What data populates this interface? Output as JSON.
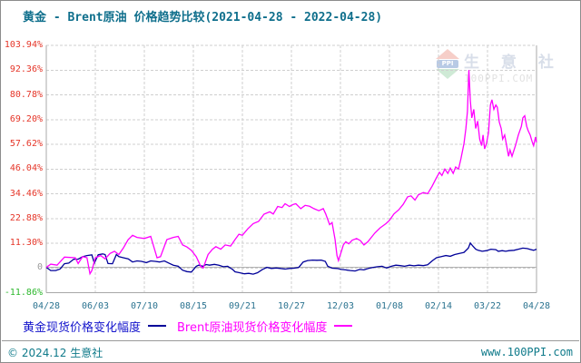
{
  "header": {
    "title": "黄金 - Brent原油 价格趋势比较(2021-04-28 - 2022-04-28)"
  },
  "watermark": {
    "logo_text": "PPI",
    "site_name": "生 意 社",
    "site_domain": "100PPI.COM"
  },
  "legend": {
    "series": [
      {
        "label": "黄金现货价格变化幅度",
        "line_color": "#000099",
        "text_color": "#1414cc"
      },
      {
        "label": "Brent原油现货价格变化幅度",
        "line_color": "#ff00ff",
        "text_color": "#ff00ff"
      }
    ]
  },
  "footer": {
    "left": "© 2024.12 生意社",
    "right": "www.100PPI.com"
  },
  "colors": {
    "title": "#0f6f8c",
    "x_tick": "#2b7390",
    "y_tick_positive": "#e53528",
    "y_tick_zero": "#999999",
    "y_tick_negative": "#2eb82e",
    "grid": "#cfcfcf",
    "axis_border": "#a8a8a8",
    "zero_line": "#b2b2b2",
    "series_gold": "#000099",
    "series_brent": "#ff00ff"
  },
  "chart_data": {
    "type": "line",
    "title": "黄金 - Brent原油 价格趋势比较(2021-04-28 - 2022-04-28)",
    "xlabel": "",
    "ylabel": "",
    "ylim": [
      -11.86,
      103.94
    ],
    "grid": "dashed",
    "legend_position": "bottom",
    "x_ticks": [
      "04/28",
      "06/03",
      "07/10",
      "08/15",
      "09/21",
      "10/27",
      "12/03",
      "01/08",
      "02/14",
      "03/22",
      "04/28"
    ],
    "y_ticks": [
      {
        "label": "103.94%",
        "value": 103.94
      },
      {
        "label": "92.36%",
        "value": 92.36
      },
      {
        "label": "80.78%",
        "value": 80.78
      },
      {
        "label": "69.20%",
        "value": 69.2
      },
      {
        "label": "57.62%",
        "value": 57.62
      },
      {
        "label": "46.04%",
        "value": 46.04
      },
      {
        "label": "34.46%",
        "value": 34.46
      },
      {
        "label": "22.88%",
        "value": 22.88
      },
      {
        "label": "11.30%",
        "value": 11.3
      },
      {
        "label": "0",
        "value": 0
      },
      {
        "label": "-11.86%",
        "value": -11.86
      }
    ],
    "gridline_values": [
      103.94,
      92.36,
      80.78,
      69.2,
      57.62,
      46.04,
      34.46,
      22.88,
      11.3,
      -0.28
    ],
    "zero_line_value": 0,
    "series": [
      {
        "name": "黄金现货价格变化幅度",
        "color": "#000099",
        "points": [
          [
            0.0,
            0
          ],
          [
            0.009,
            -1.5
          ],
          [
            0.019,
            -1.5
          ],
          [
            0.028,
            -0.8
          ],
          [
            0.037,
            1.7
          ],
          [
            0.046,
            2.0
          ],
          [
            0.056,
            3.8
          ],
          [
            0.065,
            3.8
          ],
          [
            0.074,
            5.0
          ],
          [
            0.083,
            5.5
          ],
          [
            0.093,
            5.8
          ],
          [
            0.098,
            2.0
          ],
          [
            0.106,
            5.9
          ],
          [
            0.115,
            6.3
          ],
          [
            0.12,
            6.0
          ],
          [
            0.126,
            1.8
          ],
          [
            0.135,
            1.7
          ],
          [
            0.143,
            6.0
          ],
          [
            0.148,
            5.0
          ],
          [
            0.157,
            4.5
          ],
          [
            0.167,
            4.0
          ],
          [
            0.176,
            2.5
          ],
          [
            0.185,
            3.0
          ],
          [
            0.194,
            2.8
          ],
          [
            0.204,
            2.2
          ],
          [
            0.213,
            3.0
          ],
          [
            0.222,
            2.8
          ],
          [
            0.231,
            2.5
          ],
          [
            0.241,
            3.0
          ],
          [
            0.25,
            2.0
          ],
          [
            0.259,
            1.0
          ],
          [
            0.269,
            0.5
          ],
          [
            0.278,
            -1.3
          ],
          [
            0.287,
            -2.0
          ],
          [
            0.296,
            -2.2
          ],
          [
            0.306,
            0.5
          ],
          [
            0.311,
            1.0
          ],
          [
            0.319,
            0.5
          ],
          [
            0.326,
            1.3
          ],
          [
            0.333,
            1.0
          ],
          [
            0.343,
            1.4
          ],
          [
            0.352,
            1.0
          ],
          [
            0.361,
            0.3
          ],
          [
            0.37,
            0.5
          ],
          [
            0.38,
            -1.0
          ],
          [
            0.385,
            -2.1
          ],
          [
            0.394,
            -2.5
          ],
          [
            0.404,
            -3.0
          ],
          [
            0.413,
            -2.8
          ],
          [
            0.422,
            -3.2
          ],
          [
            0.431,
            -2.5
          ],
          [
            0.441,
            -1.0
          ],
          [
            0.45,
            0.0
          ],
          [
            0.459,
            -0.5
          ],
          [
            0.469,
            -0.3
          ],
          [
            0.478,
            -0.5
          ],
          [
            0.487,
            -0.8
          ],
          [
            0.496,
            -0.5
          ],
          [
            0.506,
            -0.4
          ],
          [
            0.515,
            0.0
          ],
          [
            0.524,
            2.5
          ],
          [
            0.533,
            3.2
          ],
          [
            0.543,
            3.4
          ],
          [
            0.552,
            3.3
          ],
          [
            0.561,
            3.4
          ],
          [
            0.569,
            2.8
          ],
          [
            0.574,
            0.5
          ],
          [
            0.583,
            -0.4
          ],
          [
            0.593,
            -0.5
          ],
          [
            0.602,
            -1.0
          ],
          [
            0.611,
            -1.2
          ],
          [
            0.62,
            -1.5
          ],
          [
            0.63,
            -1.7
          ],
          [
            0.639,
            -1.0
          ],
          [
            0.648,
            -1.2
          ],
          [
            0.657,
            -0.5
          ],
          [
            0.667,
            0.0
          ],
          [
            0.676,
            0.3
          ],
          [
            0.685,
            0.5
          ],
          [
            0.694,
            -0.3
          ],
          [
            0.704,
            0.5
          ],
          [
            0.713,
            1.0
          ],
          [
            0.722,
            0.8
          ],
          [
            0.731,
            0.5
          ],
          [
            0.741,
            1.0
          ],
          [
            0.75,
            0.7
          ],
          [
            0.759,
            1.0
          ],
          [
            0.769,
            0.8
          ],
          [
            0.778,
            1.2
          ],
          [
            0.787,
            3.0
          ],
          [
            0.796,
            4.5
          ],
          [
            0.806,
            5.0
          ],
          [
            0.815,
            5.5
          ],
          [
            0.824,
            5.2
          ],
          [
            0.833,
            6.0
          ],
          [
            0.843,
            6.5
          ],
          [
            0.852,
            7.0
          ],
          [
            0.861,
            9.0
          ],
          [
            0.865,
            11.4
          ],
          [
            0.87,
            10.0
          ],
          [
            0.876,
            8.5
          ],
          [
            0.881,
            8.0
          ],
          [
            0.889,
            7.5
          ],
          [
            0.898,
            7.8
          ],
          [
            0.907,
            8.5
          ],
          [
            0.917,
            8.3
          ],
          [
            0.922,
            7.5
          ],
          [
            0.93,
            7.8
          ],
          [
            0.937,
            7.5
          ],
          [
            0.944,
            7.8
          ],
          [
            0.954,
            8.0
          ],
          [
            0.963,
            8.5
          ],
          [
            0.972,
            9.0
          ],
          [
            0.981,
            8.8
          ],
          [
            0.989,
            8.3
          ],
          [
            0.994,
            8.0
          ],
          [
            1.0,
            8.5
          ]
        ]
      },
      {
        "name": "Brent原油现货价格变化幅度",
        "color": "#ff00ff",
        "points": [
          [
            0.0,
            0
          ],
          [
            0.009,
            1.5
          ],
          [
            0.022,
            1.0
          ],
          [
            0.037,
            4.8
          ],
          [
            0.059,
            4.5
          ],
          [
            0.065,
            1.8
          ],
          [
            0.074,
            5.0
          ],
          [
            0.083,
            4.5
          ],
          [
            0.089,
            -3.0
          ],
          [
            0.093,
            -1.5
          ],
          [
            0.1,
            4.5
          ],
          [
            0.111,
            5.5
          ],
          [
            0.12,
            4.0
          ],
          [
            0.13,
            6.5
          ],
          [
            0.139,
            7.5
          ],
          [
            0.148,
            6.0
          ],
          [
            0.157,
            9.0
          ],
          [
            0.167,
            13.0
          ],
          [
            0.176,
            15.0
          ],
          [
            0.185,
            14.0
          ],
          [
            0.2,
            13.5
          ],
          [
            0.213,
            14.5
          ],
          [
            0.226,
            4.5
          ],
          [
            0.233,
            5.0
          ],
          [
            0.246,
            13.0
          ],
          [
            0.259,
            14.0
          ],
          [
            0.269,
            14.5
          ],
          [
            0.278,
            10.5
          ],
          [
            0.287,
            9.5
          ],
          [
            0.296,
            8.0
          ],
          [
            0.306,
            5.0
          ],
          [
            0.315,
            0.5
          ],
          [
            0.32,
            -0.3
          ],
          [
            0.33,
            6.0
          ],
          [
            0.339,
            8.5
          ],
          [
            0.346,
            9.7
          ],
          [
            0.356,
            8.5
          ],
          [
            0.365,
            10.5
          ],
          [
            0.376,
            10.0
          ],
          [
            0.385,
            13.0
          ],
          [
            0.393,
            15.5
          ],
          [
            0.4,
            15.0
          ],
          [
            0.411,
            18.0
          ],
          [
            0.422,
            20.5
          ],
          [
            0.433,
            21.5
          ],
          [
            0.444,
            24.9
          ],
          [
            0.456,
            26.0
          ],
          [
            0.463,
            25.0
          ],
          [
            0.472,
            28.5
          ],
          [
            0.481,
            28.0
          ],
          [
            0.487,
            29.8
          ],
          [
            0.496,
            28.5
          ],
          [
            0.504,
            29.5
          ],
          [
            0.509,
            29.8
          ],
          [
            0.519,
            27.5
          ],
          [
            0.528,
            29.0
          ],
          [
            0.537,
            28.6
          ],
          [
            0.546,
            27.5
          ],
          [
            0.556,
            26.5
          ],
          [
            0.565,
            27.5
          ],
          [
            0.57,
            25.0
          ],
          [
            0.578,
            20.0
          ],
          [
            0.583,
            21.0
          ],
          [
            0.589,
            13.0
          ],
          [
            0.593,
            5.5
          ],
          [
            0.596,
            3.2
          ],
          [
            0.602,
            7.5
          ],
          [
            0.606,
            10.5
          ],
          [
            0.611,
            12.0
          ],
          [
            0.617,
            11.0
          ],
          [
            0.624,
            12.7
          ],
          [
            0.633,
            13.5
          ],
          [
            0.641,
            12.5
          ],
          [
            0.648,
            10.5
          ],
          [
            0.656,
            12.0
          ],
          [
            0.663,
            14.0
          ],
          [
            0.67,
            16.0
          ],
          [
            0.681,
            18.5
          ],
          [
            0.693,
            20.5
          ],
          [
            0.7,
            22.0
          ],
          [
            0.709,
            25.0
          ],
          [
            0.719,
            27.0
          ],
          [
            0.728,
            29.5
          ],
          [
            0.737,
            33.0
          ],
          [
            0.744,
            33.5
          ],
          [
            0.752,
            31.5
          ],
          [
            0.759,
            34.0
          ],
          [
            0.769,
            35.0
          ],
          [
            0.778,
            34.5
          ],
          [
            0.787,
            38.0
          ],
          [
            0.796,
            42.0
          ],
          [
            0.802,
            44.5
          ],
          [
            0.807,
            43.0
          ],
          [
            0.813,
            46.0
          ],
          [
            0.819,
            44.0
          ],
          [
            0.824,
            46.5
          ],
          [
            0.83,
            44.0
          ],
          [
            0.835,
            47.0
          ],
          [
            0.841,
            46.0
          ],
          [
            0.846,
            51.0
          ],
          [
            0.852,
            58.0
          ],
          [
            0.856,
            65.0
          ],
          [
            0.859,
            73.0
          ],
          [
            0.862,
            92.4
          ],
          [
            0.865,
            78.0
          ],
          [
            0.868,
            70.0
          ],
          [
            0.872,
            74.0
          ],
          [
            0.876,
            65.0
          ],
          [
            0.88,
            68.5
          ],
          [
            0.884,
            60.0
          ],
          [
            0.888,
            57.0
          ],
          [
            0.891,
            62.0
          ],
          [
            0.894,
            55.5
          ],
          [
            0.898,
            58.0
          ],
          [
            0.902,
            63.0
          ],
          [
            0.906,
            76.0
          ],
          [
            0.909,
            78.5
          ],
          [
            0.913,
            74.0
          ],
          [
            0.917,
            76.0
          ],
          [
            0.92,
            75.0
          ],
          [
            0.924,
            68.0
          ],
          [
            0.928,
            65.0
          ],
          [
            0.931,
            60.0
          ],
          [
            0.935,
            62.0
          ],
          [
            0.939,
            57.0
          ],
          [
            0.943,
            52.0
          ],
          [
            0.946,
            55.0
          ],
          [
            0.95,
            52.0
          ],
          [
            0.957,
            57.0
          ],
          [
            0.963,
            62.0
          ],
          [
            0.969,
            66.0
          ],
          [
            0.972,
            70.0
          ],
          [
            0.976,
            71.0
          ],
          [
            0.98,
            66.0
          ],
          [
            0.983,
            64.0
          ],
          [
            0.987,
            62.0
          ],
          [
            0.991,
            59.0
          ],
          [
            0.994,
            57.0
          ],
          [
            0.998,
            61.0
          ],
          [
            1.0,
            58.5
          ]
        ]
      }
    ]
  }
}
